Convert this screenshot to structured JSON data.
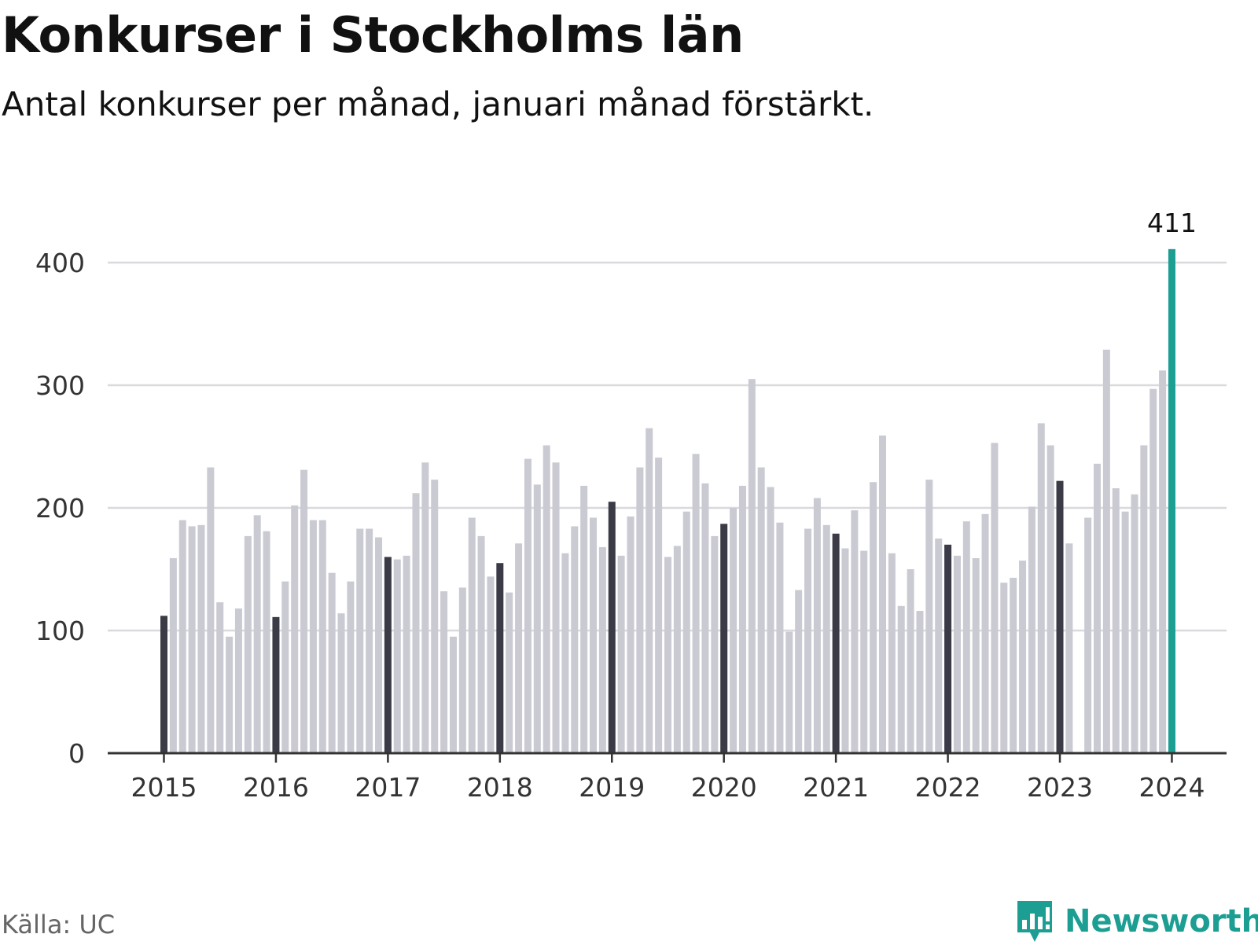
{
  "title": "Konkurser i Stockholms län",
  "subtitle": "Antal konkurser per månad, januari månad förstärkt.",
  "source": "Källa: UC",
  "brand": "Newsworthy",
  "colors": {
    "bar": "#cacad3",
    "january": "#3b3b47",
    "latest": "#1c9e93",
    "grid": "#d9d9de",
    "axis": "#333333",
    "brand": "#1c9e93"
  },
  "chart_data": {
    "type": "bar",
    "title": "Konkurser i Stockholms län",
    "subtitle": "Antal konkurser per månad, januari månad förstärkt.",
    "x_start": "2015-01",
    "x_ticks": [
      "2015",
      "2016",
      "2017",
      "2018",
      "2019",
      "2020",
      "2021",
      "2022",
      "2023",
      "2024"
    ],
    "y_ticks": [
      0,
      100,
      200,
      300,
      400
    ],
    "ylim": [
      0,
      411
    ],
    "grid": true,
    "highlight": "januari",
    "annotation": "411",
    "values": [
      112,
      159,
      190,
      185,
      186,
      233,
      123,
      95,
      118,
      177,
      194,
      181,
      111,
      140,
      202,
      231,
      190,
      190,
      147,
      114,
      140,
      183,
      183,
      176,
      160,
      158,
      161,
      212,
      237,
      223,
      132,
      95,
      135,
      192,
      177,
      144,
      155,
      131,
      171,
      240,
      219,
      251,
      237,
      163,
      185,
      218,
      192,
      168,
      205,
      161,
      193,
      233,
      265,
      241,
      160,
      169,
      197,
      244,
      220,
      177,
      187,
      200,
      218,
      305,
      233,
      217,
      188,
      99,
      133,
      183,
      208,
      186,
      179,
      167,
      198,
      165,
      221,
      259,
      163,
      120,
      150,
      116,
      223,
      175,
      170,
      161,
      189,
      159,
      195,
      253,
      139,
      143,
      157,
      201,
      269,
      251,
      222,
      171,
      0,
      192,
      236,
      329,
      216,
      197,
      211,
      251,
      297,
      312,
      411
    ]
  }
}
